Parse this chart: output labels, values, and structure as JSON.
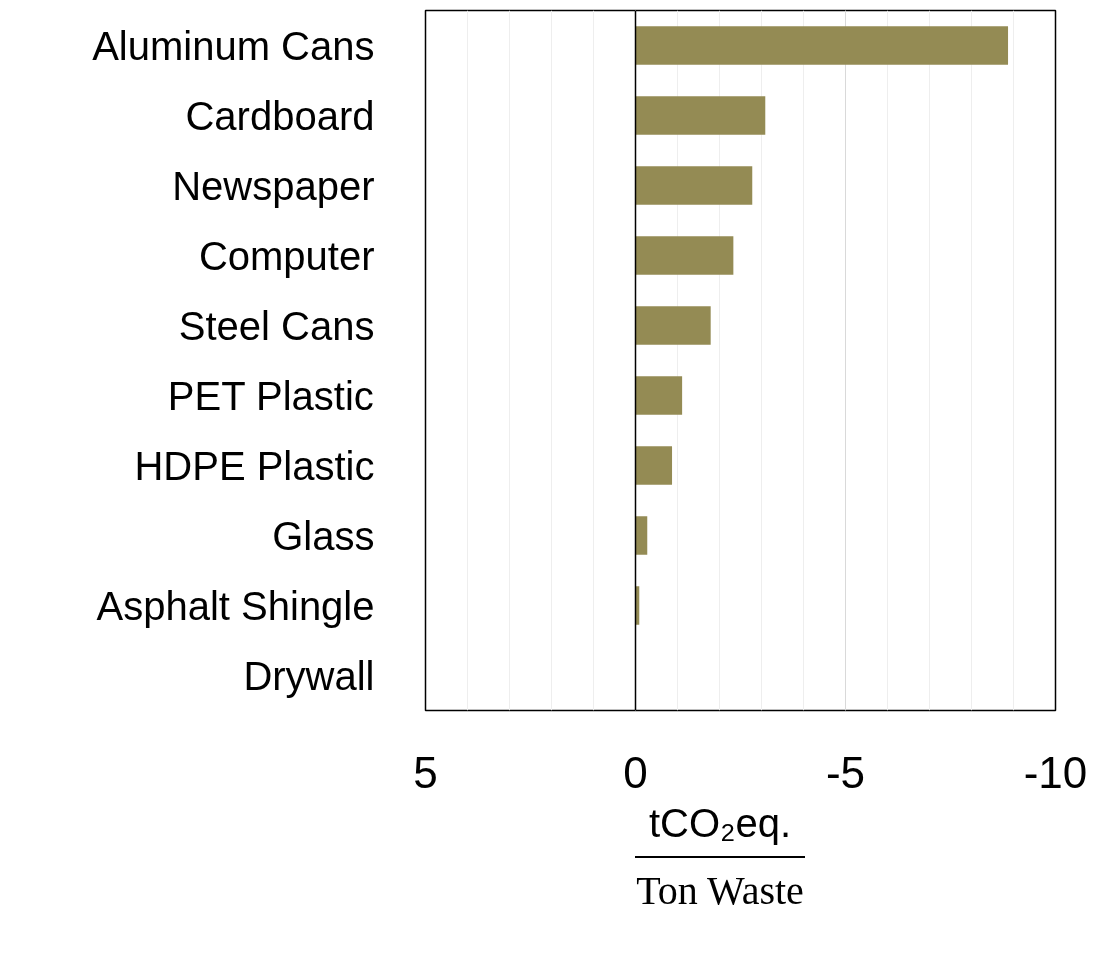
{
  "chart_data": {
    "type": "bar",
    "orientation": "horizontal",
    "categories": [
      "Aluminum Cans",
      "Cardboard",
      "Newspaper",
      "Computer",
      "Steel Cans",
      "PET Plastic",
      "HDPE Plastic",
      "Glass",
      "Asphalt Shingle",
      "Drywall"
    ],
    "values": [
      -8.87,
      -3.09,
      -2.78,
      -2.33,
      -1.79,
      -1.11,
      -0.87,
      -0.28,
      -0.09,
      0.0
    ],
    "color": "#948b54",
    "xlim": [
      5,
      -10
    ],
    "xticks": [
      5,
      0,
      -5,
      -10
    ],
    "xlabel": "tCO₂eq.\nTon Waste",
    "grid": "x"
  }
}
